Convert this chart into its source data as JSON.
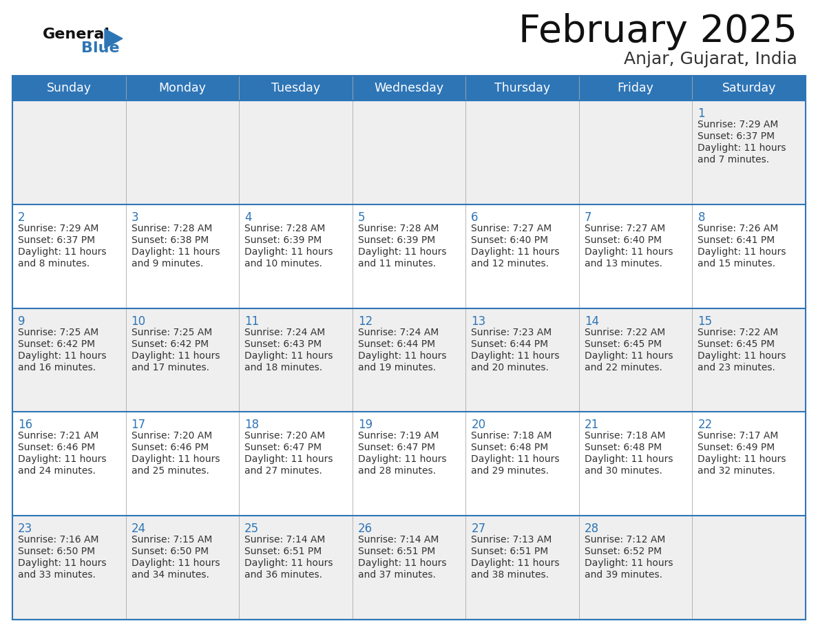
{
  "title": "February 2025",
  "subtitle": "Anjar, Gujarat, India",
  "header_bg": "#2E75B6",
  "header_text_color": "#FFFFFF",
  "day_names": [
    "Sunday",
    "Monday",
    "Tuesday",
    "Wednesday",
    "Thursday",
    "Friday",
    "Saturday"
  ],
  "odd_row_bg": "#EFEFEF",
  "even_row_bg": "#FFFFFF",
  "cell_border_color": "#2E75B6",
  "date_color": "#2E75B6",
  "info_color": "#333333",
  "logo_general_color": "#111111",
  "logo_blue_color": "#2E75B6",
  "logo_triangle_color": "#2E75B6",
  "calendar_data": [
    [
      null,
      null,
      null,
      null,
      null,
      null,
      {
        "day": "1",
        "sunrise": "7:29 AM",
        "sunset": "6:37 PM",
        "daylight_line1": "Daylight: 11 hours",
        "daylight_line2": "and 7 minutes."
      }
    ],
    [
      {
        "day": "2",
        "sunrise": "7:29 AM",
        "sunset": "6:37 PM",
        "daylight_line1": "Daylight: 11 hours",
        "daylight_line2": "and 8 minutes."
      },
      {
        "day": "3",
        "sunrise": "7:28 AM",
        "sunset": "6:38 PM",
        "daylight_line1": "Daylight: 11 hours",
        "daylight_line2": "and 9 minutes."
      },
      {
        "day": "4",
        "sunrise": "7:28 AM",
        "sunset": "6:39 PM",
        "daylight_line1": "Daylight: 11 hours",
        "daylight_line2": "and 10 minutes."
      },
      {
        "day": "5",
        "sunrise": "7:28 AM",
        "sunset": "6:39 PM",
        "daylight_line1": "Daylight: 11 hours",
        "daylight_line2": "and 11 minutes."
      },
      {
        "day": "6",
        "sunrise": "7:27 AM",
        "sunset": "6:40 PM",
        "daylight_line1": "Daylight: 11 hours",
        "daylight_line2": "and 12 minutes."
      },
      {
        "day": "7",
        "sunrise": "7:27 AM",
        "sunset": "6:40 PM",
        "daylight_line1": "Daylight: 11 hours",
        "daylight_line2": "and 13 minutes."
      },
      {
        "day": "8",
        "sunrise": "7:26 AM",
        "sunset": "6:41 PM",
        "daylight_line1": "Daylight: 11 hours",
        "daylight_line2": "and 15 minutes."
      }
    ],
    [
      {
        "day": "9",
        "sunrise": "7:25 AM",
        "sunset": "6:42 PM",
        "daylight_line1": "Daylight: 11 hours",
        "daylight_line2": "and 16 minutes."
      },
      {
        "day": "10",
        "sunrise": "7:25 AM",
        "sunset": "6:42 PM",
        "daylight_line1": "Daylight: 11 hours",
        "daylight_line2": "and 17 minutes."
      },
      {
        "day": "11",
        "sunrise": "7:24 AM",
        "sunset": "6:43 PM",
        "daylight_line1": "Daylight: 11 hours",
        "daylight_line2": "and 18 minutes."
      },
      {
        "day": "12",
        "sunrise": "7:24 AM",
        "sunset": "6:44 PM",
        "daylight_line1": "Daylight: 11 hours",
        "daylight_line2": "and 19 minutes."
      },
      {
        "day": "13",
        "sunrise": "7:23 AM",
        "sunset": "6:44 PM",
        "daylight_line1": "Daylight: 11 hours",
        "daylight_line2": "and 20 minutes."
      },
      {
        "day": "14",
        "sunrise": "7:22 AM",
        "sunset": "6:45 PM",
        "daylight_line1": "Daylight: 11 hours",
        "daylight_line2": "and 22 minutes."
      },
      {
        "day": "15",
        "sunrise": "7:22 AM",
        "sunset": "6:45 PM",
        "daylight_line1": "Daylight: 11 hours",
        "daylight_line2": "and 23 minutes."
      }
    ],
    [
      {
        "day": "16",
        "sunrise": "7:21 AM",
        "sunset": "6:46 PM",
        "daylight_line1": "Daylight: 11 hours",
        "daylight_line2": "and 24 minutes."
      },
      {
        "day": "17",
        "sunrise": "7:20 AM",
        "sunset": "6:46 PM",
        "daylight_line1": "Daylight: 11 hours",
        "daylight_line2": "and 25 minutes."
      },
      {
        "day": "18",
        "sunrise": "7:20 AM",
        "sunset": "6:47 PM",
        "daylight_line1": "Daylight: 11 hours",
        "daylight_line2": "and 27 minutes."
      },
      {
        "day": "19",
        "sunrise": "7:19 AM",
        "sunset": "6:47 PM",
        "daylight_line1": "Daylight: 11 hours",
        "daylight_line2": "and 28 minutes."
      },
      {
        "day": "20",
        "sunrise": "7:18 AM",
        "sunset": "6:48 PM",
        "daylight_line1": "Daylight: 11 hours",
        "daylight_line2": "and 29 minutes."
      },
      {
        "day": "21",
        "sunrise": "7:18 AM",
        "sunset": "6:48 PM",
        "daylight_line1": "Daylight: 11 hours",
        "daylight_line2": "and 30 minutes."
      },
      {
        "day": "22",
        "sunrise": "7:17 AM",
        "sunset": "6:49 PM",
        "daylight_line1": "Daylight: 11 hours",
        "daylight_line2": "and 32 minutes."
      }
    ],
    [
      {
        "day": "23",
        "sunrise": "7:16 AM",
        "sunset": "6:50 PM",
        "daylight_line1": "Daylight: 11 hours",
        "daylight_line2": "and 33 minutes."
      },
      {
        "day": "24",
        "sunrise": "7:15 AM",
        "sunset": "6:50 PM",
        "daylight_line1": "Daylight: 11 hours",
        "daylight_line2": "and 34 minutes."
      },
      {
        "day": "25",
        "sunrise": "7:14 AM",
        "sunset": "6:51 PM",
        "daylight_line1": "Daylight: 11 hours",
        "daylight_line2": "and 36 minutes."
      },
      {
        "day": "26",
        "sunrise": "7:14 AM",
        "sunset": "6:51 PM",
        "daylight_line1": "Daylight: 11 hours",
        "daylight_line2": "and 37 minutes."
      },
      {
        "day": "27",
        "sunrise": "7:13 AM",
        "sunset": "6:51 PM",
        "daylight_line1": "Daylight: 11 hours",
        "daylight_line2": "and 38 minutes."
      },
      {
        "day": "28",
        "sunrise": "7:12 AM",
        "sunset": "6:52 PM",
        "daylight_line1": "Daylight: 11 hours",
        "daylight_line2": "and 39 minutes."
      },
      null
    ]
  ]
}
